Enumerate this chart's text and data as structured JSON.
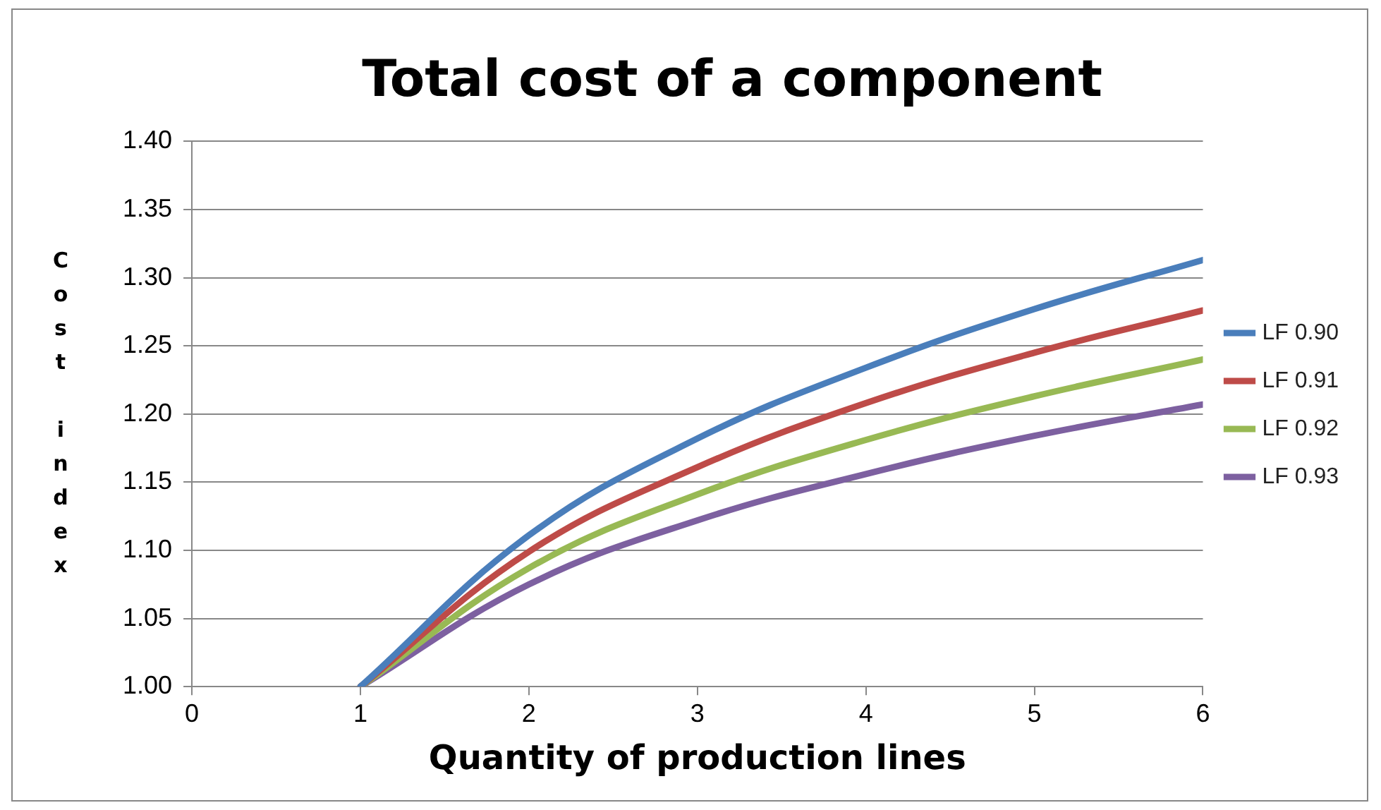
{
  "chart_data": {
    "type": "line",
    "title": "Total cost of a component",
    "xlabel": "Quantity of production lines",
    "ylabel": "Cost index",
    "x": [
      1,
      2,
      3,
      4,
      5,
      6
    ],
    "series": [
      {
        "name": "LF 0.90",
        "color": "#4a7ebb",
        "values": [
          1.0,
          1.111,
          1.182,
          1.234,
          1.277,
          1.313
        ]
      },
      {
        "name": "LF 0.91",
        "color": "#be4b48",
        "values": [
          1.0,
          1.099,
          1.161,
          1.208,
          1.245,
          1.276
        ]
      },
      {
        "name": "LF 0.92",
        "color": "#98b954",
        "values": [
          1.0,
          1.087,
          1.141,
          1.181,
          1.213,
          1.24
        ]
      },
      {
        "name": "LF 0.93",
        "color": "#7d60a0",
        "values": [
          1.0,
          1.075,
          1.122,
          1.156,
          1.184,
          1.207
        ]
      }
    ],
    "xlim": [
      0,
      6
    ],
    "xticks": [
      0,
      1,
      2,
      3,
      4,
      5,
      6
    ],
    "ylim": [
      1.0,
      1.4
    ],
    "yticks": [
      {
        "value": 1.0,
        "label": "1.00"
      },
      {
        "value": 1.05,
        "label": "1.05"
      },
      {
        "value": 1.1,
        "label": "1.10"
      },
      {
        "value": 1.15,
        "label": "1.15"
      },
      {
        "value": 1.2,
        "label": "1.20"
      },
      {
        "value": 1.25,
        "label": "1.25"
      },
      {
        "value": 1.3,
        "label": "1.30"
      },
      {
        "value": 1.35,
        "label": "1.35"
      },
      {
        "value": 1.4,
        "label": "1.40"
      }
    ],
    "grid": "y",
    "legend": "right",
    "marker": "none",
    "line_style": "solid"
  }
}
